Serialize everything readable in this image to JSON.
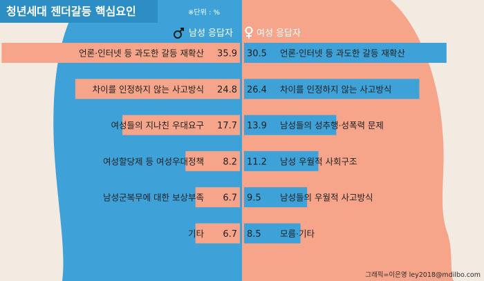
{
  "chart_data": {
    "type": "bar",
    "title": "청년세대 젠더갈등 핵심요인",
    "unit_note": "※단위 : %",
    "credit": "그래픽=이은영 ley2018@mdilbo.com",
    "series": [
      {
        "name": "남성 응답자",
        "categories": [
          "언론·인터넷 등 과도한 갈등 재확산",
          "차이를 인정하지 않는 사고방식",
          "여성들의 지나친 우대요구",
          "여성할당제 등 여성우대정책",
          "남성군복무에 대한 보상부족",
          "기타"
        ],
        "values": [
          35.9,
          24.8,
          17.7,
          8.2,
          6.7,
          6.7
        ]
      },
      {
        "name": "여성 응답자",
        "categories": [
          "언론·인터넷 등 과도한 갈등 재확산",
          "차이를 인정하지 않는 사고방식",
          "남성들의 성추행·성폭력 문제",
          "남성 우월적 사회구조",
          "남성들의 우월적 사고방식",
          "모름·기타"
        ],
        "values": [
          30.5,
          26.4,
          13.9,
          11.2,
          9.5,
          8.5
        ]
      }
    ],
    "colors": {
      "male_panel": "#3ea2d8",
      "female_panel": "#f7a58a",
      "male_bar": "#f7a58a",
      "female_bar": "#3ea2d8",
      "title_box": "#2c8ec4"
    }
  }
}
